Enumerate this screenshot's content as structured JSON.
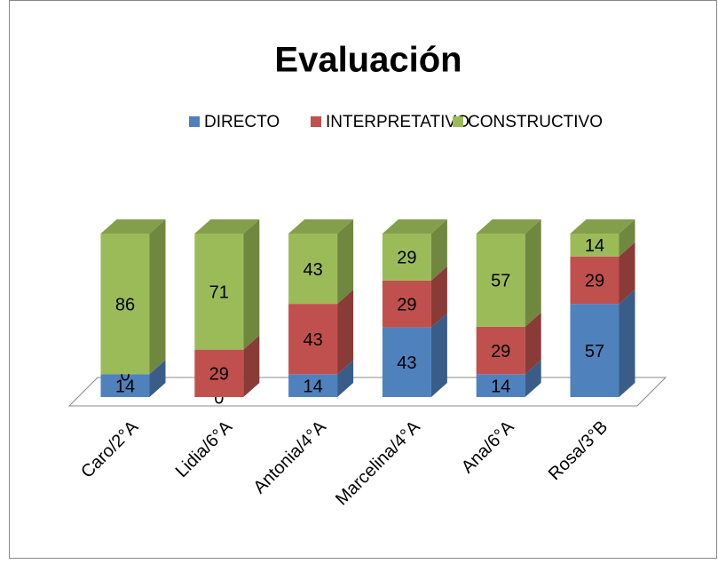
{
  "chart_data": {
    "type": "bar",
    "stacked": true,
    "title": "Evaluación",
    "categories": [
      "Caro/2°A",
      "Lidia/6°A",
      "Antonia/4°A",
      "Marcelina/4°A",
      "Ana/6°A",
      "Rosa/3°B"
    ],
    "series": [
      {
        "name": "DIRECTO",
        "color": "#4f81bd",
        "values": [
          14,
          0,
          14,
          43,
          14,
          57
        ]
      },
      {
        "name": "INTERPRETATIVO",
        "color": "#c0504d",
        "values": [
          0,
          29,
          43,
          29,
          29,
          29
        ]
      },
      {
        "name": "CONSTRUCTIVO",
        "color": "#9bbb59",
        "values": [
          86,
          71,
          43,
          29,
          57,
          14
        ]
      }
    ],
    "legend": "top"
  }
}
